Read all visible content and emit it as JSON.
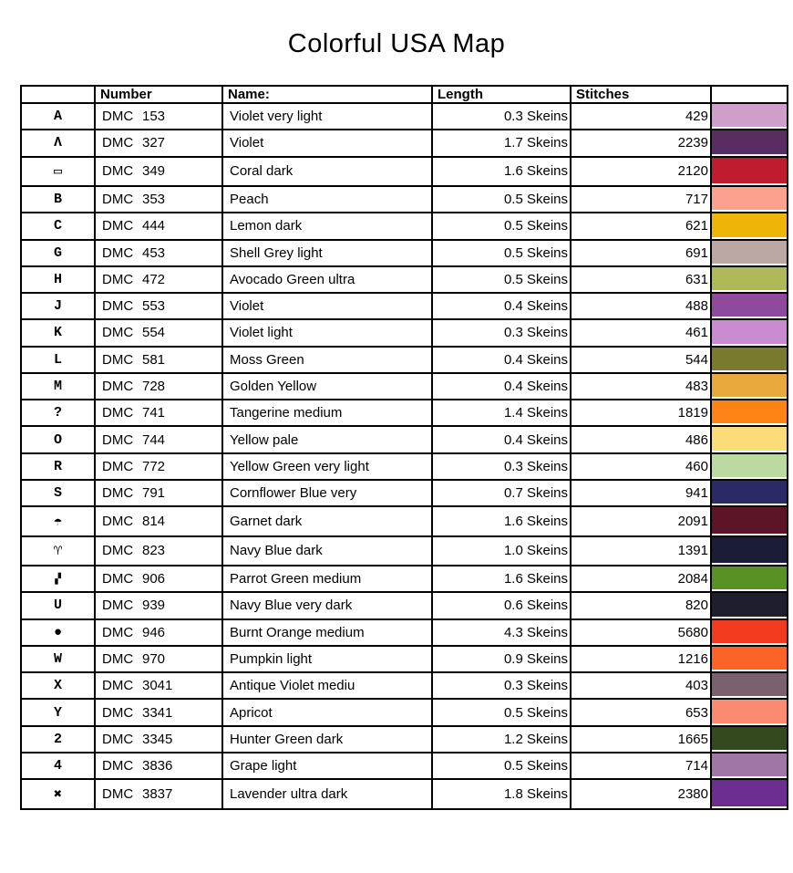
{
  "title": "Colorful USA Map",
  "table": {
    "headers": {
      "symbol": "",
      "number": "Number",
      "name": "Name:",
      "length": "Length",
      "stitches": "Stitches",
      "color": ""
    },
    "rows": [
      {
        "symbol": "A",
        "brand": "DMC",
        "number": "153",
        "name": "Violet very light",
        "length": "0.3 Skeins",
        "stitches": "429",
        "color": "#CE9FCA"
      },
      {
        "symbol": "Λ",
        "brand": "DMC",
        "number": "327",
        "name": "Violet",
        "length": "1.7 Skeins",
        "stitches": "2239",
        "color": "#5A2D62"
      },
      {
        "symbol": "▭",
        "brand": "DMC",
        "number": "349",
        "name": "Coral dark",
        "length": "1.6 Skeins",
        "stitches": "2120",
        "color": "#C01C30"
      },
      {
        "symbol": "B",
        "brand": "DMC",
        "number": "353",
        "name": "Peach",
        "length": "0.5 Skeins",
        "stitches": "717",
        "color": "#FCA18F"
      },
      {
        "symbol": "C",
        "brand": "DMC",
        "number": "444",
        "name": "Lemon dark",
        "length": "0.5 Skeins",
        "stitches": "621",
        "color": "#EDB505"
      },
      {
        "symbol": "G",
        "brand": "DMC",
        "number": "453",
        "name": "Shell Grey light",
        "length": "0.5 Skeins",
        "stitches": "691",
        "color": "#BCA8A3"
      },
      {
        "symbol": "H",
        "brand": "DMC",
        "number": "472",
        "name": "Avocado Green ultra",
        "length": "0.5 Skeins",
        "stitches": "631",
        "color": "#AEB857"
      },
      {
        "symbol": "J",
        "brand": "DMC",
        "number": "553",
        "name": "Violet",
        "length": "0.4 Skeins",
        "stitches": "488",
        "color": "#8F4A9E"
      },
      {
        "symbol": "K",
        "brand": "DMC",
        "number": "554",
        "name": "Violet light",
        "length": "0.3 Skeins",
        "stitches": "461",
        "color": "#C88BD0"
      },
      {
        "symbol": "L",
        "brand": "DMC",
        "number": "581",
        "name": "Moss Green",
        "length": "0.4 Skeins",
        "stitches": "544",
        "color": "#7A7A2E"
      },
      {
        "symbol": "M",
        "brand": "DMC",
        "number": "728",
        "name": "Golden Yellow",
        "length": "0.4 Skeins",
        "stitches": "483",
        "color": "#E8A83C"
      },
      {
        "symbol": "?",
        "brand": "DMC",
        "number": "741",
        "name": "Tangerine medium",
        "length": "1.4 Skeins",
        "stitches": "1819",
        "color": "#FD8317"
      },
      {
        "symbol": "O",
        "brand": "DMC",
        "number": "744",
        "name": "Yellow pale",
        "length": "0.4 Skeins",
        "stitches": "486",
        "color": "#FBDC79"
      },
      {
        "symbol": "R",
        "brand": "DMC",
        "number": "772",
        "name": "Yellow Green very light",
        "length": "0.3 Skeins",
        "stitches": "460",
        "color": "#BCD9A2"
      },
      {
        "symbol": "S",
        "brand": "DMC",
        "number": "791",
        "name": "Cornflower Blue very",
        "length": "0.7 Skeins",
        "stitches": "941",
        "color": "#2C2A66"
      },
      {
        "symbol": "☂",
        "brand": "DMC",
        "number": "814",
        "name": "Garnet dark",
        "length": "1.6 Skeins",
        "stitches": "2091",
        "color": "#5C1426"
      },
      {
        "symbol": "♈",
        "brand": "DMC",
        "number": "823",
        "name": "Navy Blue dark",
        "length": "1.0 Skeins",
        "stitches": "1391",
        "color": "#1B1C38"
      },
      {
        "symbol": "▞",
        "brand": "DMC",
        "number": "906",
        "name": "Parrot Green medium",
        "length": "1.6 Skeins",
        "stitches": "2084",
        "color": "#579023"
      },
      {
        "symbol": "U",
        "brand": "DMC",
        "number": "939",
        "name": "Navy Blue very dark",
        "length": "0.6 Skeins",
        "stitches": "820",
        "color": "#1D1F2E"
      },
      {
        "symbol": "●",
        "brand": "DMC",
        "number": "946",
        "name": "Burnt Orange medium",
        "length": "4.3 Skeins",
        "stitches": "5680",
        "color": "#F23A1E"
      },
      {
        "symbol": "W",
        "brand": "DMC",
        "number": "970",
        "name": "Pumpkin light",
        "length": "0.9 Skeins",
        "stitches": "1216",
        "color": "#FB6426"
      },
      {
        "symbol": "X",
        "brand": "DMC",
        "number": "3041",
        "name": "Antique Violet mediu",
        "length": "0.3 Skeins",
        "stitches": "403",
        "color": "#7A6170"
      },
      {
        "symbol": "Y",
        "brand": "DMC",
        "number": "3341",
        "name": "Apricot",
        "length": "0.5 Skeins",
        "stitches": "653",
        "color": "#FB8A72"
      },
      {
        "symbol": "2",
        "brand": "DMC",
        "number": "3345",
        "name": "Hunter Green dark",
        "length": "1.2 Skeins",
        "stitches": "1665",
        "color": "#35491F"
      },
      {
        "symbol": "4",
        "brand": "DMC",
        "number": "3836",
        "name": "Grape light",
        "length": "0.5 Skeins",
        "stitches": "714",
        "color": "#A076A6"
      },
      {
        "symbol": "✖",
        "brand": "DMC",
        "number": "3837",
        "name": "Lavender ultra dark",
        "length": "1.8 Skeins",
        "stitches": "2380",
        "color": "#6B2E90"
      }
    ]
  }
}
